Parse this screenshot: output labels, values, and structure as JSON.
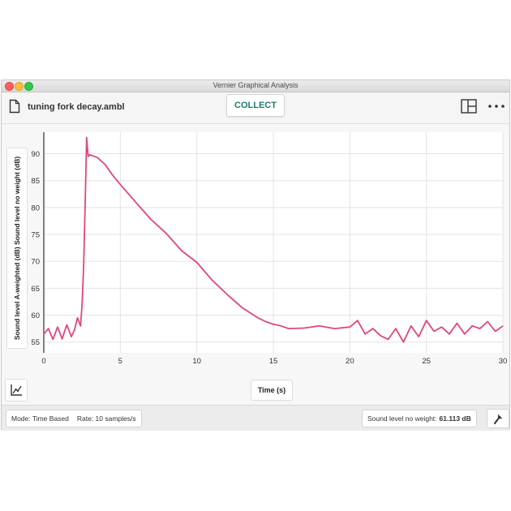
{
  "window": {
    "title": "Vernier Graphical Analysis"
  },
  "toolbar": {
    "filename": "tuning fork decay.ambl",
    "collect_label": "COLLECT",
    "file_icon": "document-icon",
    "layout_icon": "layout-panels-icon",
    "more_icon": "more-horizontal-icon"
  },
  "graph": {
    "ylabel": "Sound level A-weighted (dB) Sound level no weight (dB)",
    "xlabel": "Time (s)",
    "tool_icon": "graph-tools-icon"
  },
  "status": {
    "mode": "Mode: Time Based",
    "rate": "Rate: 10 samples/s",
    "reading_label": "Sound level no weight:",
    "reading_value": "61.113 dB",
    "wrench_icon": "wrench-icon"
  },
  "colors": {
    "series": "#e0467f",
    "accent": "#1a7a6d"
  },
  "chart_data": {
    "type": "line",
    "xlabel": "Time (s)",
    "ylabel": "Sound level A-weighted (dB) Sound level no weight (dB)",
    "xlim": [
      0,
      30
    ],
    "ylim": [
      53,
      94
    ],
    "xticks": [
      0,
      5,
      10,
      15,
      20,
      25,
      30
    ],
    "yticks": [
      55,
      60,
      65,
      70,
      75,
      80,
      85,
      90
    ],
    "grid": true,
    "series": [
      {
        "x": [
          0,
          0.3,
          0.6,
          0.9,
          1.2,
          1.5,
          1.8,
          2.0,
          2.2,
          2.4,
          2.5,
          2.6,
          2.7,
          2.8,
          2.9,
          3.0,
          3.5,
          4.0,
          4.5,
          5.0,
          6.0,
          7.0,
          8.0,
          9.0,
          10.0,
          11.0,
          12.0,
          13.0,
          14.0,
          14.5,
          15.0,
          15.5,
          16.0,
          17.0,
          18.0,
          19.0,
          20.0,
          20.5,
          21.0,
          21.5,
          22.0,
          22.5,
          23.0,
          23.5,
          24.0,
          24.5,
          25.0,
          25.5,
          26.0,
          26.5,
          27.0,
          27.5,
          28.0,
          28.5,
          29.0,
          29.5,
          30.0
        ],
        "y": [
          56.5,
          57.5,
          55.5,
          57.8,
          55.6,
          58.2,
          56.0,
          57.2,
          59.5,
          58.0,
          62.0,
          69.0,
          80.0,
          93.0,
          89.5,
          89.8,
          89.3,
          88.0,
          86.0,
          84.3,
          81.0,
          77.8,
          75.2,
          72.0,
          69.8,
          66.5,
          63.8,
          61.3,
          59.5,
          58.8,
          58.3,
          58.0,
          57.5,
          57.6,
          58.0,
          57.5,
          57.8,
          59.0,
          56.5,
          57.5,
          56.2,
          55.5,
          57.5,
          55.0,
          58.0,
          56.0,
          59.0,
          57.0,
          57.8,
          56.5,
          58.5,
          56.5,
          58.0,
          57.5,
          58.8,
          57.0,
          58.0
        ]
      }
    ]
  }
}
